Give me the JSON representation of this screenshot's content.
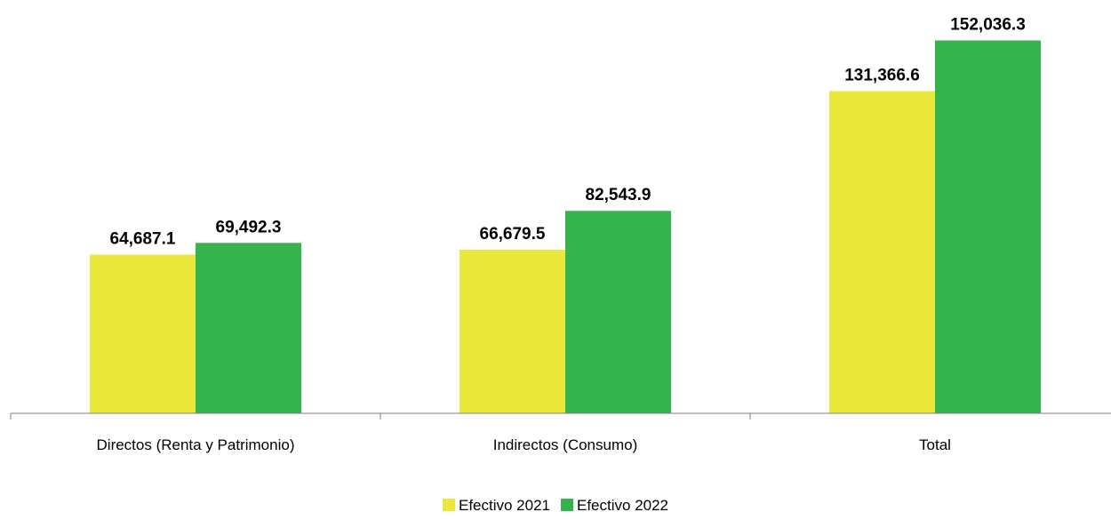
{
  "chart_data": {
    "type": "bar",
    "categories": [
      "Directos (Renta y Patrimonio)",
      "Indirectos (Consumo)",
      "Total"
    ],
    "series": [
      {
        "name": "Efectivo 2021",
        "color": "#EAE83A",
        "values": [
          64687.1,
          66679.5,
          131366.6
        ],
        "labels": [
          "64,687.1",
          "66,679.5",
          "131,366.6"
        ]
      },
      {
        "name": "Efectivo 2022",
        "color": "#35B44E",
        "values": [
          69492.3,
          82543.9,
          152036.3
        ],
        "labels": [
          "69,492.3",
          "82,543.9",
          "152,036.3"
        ]
      }
    ],
    "ylim": [
      0,
      160000
    ],
    "grid": false,
    "legend_position": "bottom",
    "data_labels": true,
    "title": "",
    "xlabel": "",
    "ylabel": ""
  }
}
